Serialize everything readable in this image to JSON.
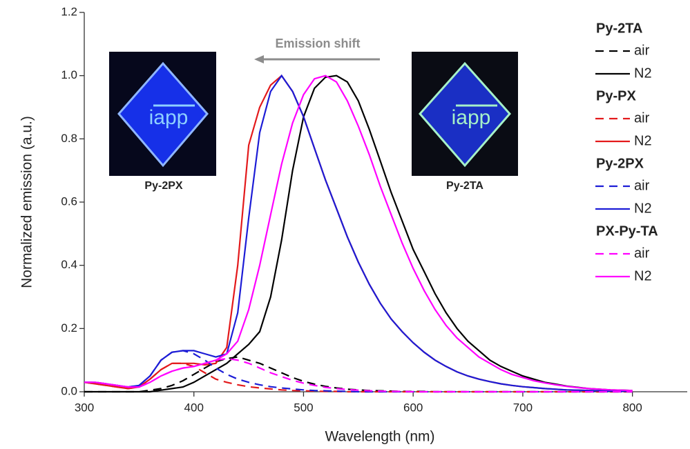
{
  "chart_data": {
    "type": "line",
    "xlabel": "Wavelength (nm)",
    "ylabel": "Normalized emission (a.u.)",
    "annotation": "Emission shift",
    "inset_labels": [
      "Py-2PX",
      "Py-2TA"
    ],
    "xlim": [
      300,
      850
    ],
    "ylim": [
      0,
      1.2
    ],
    "xticks": [
      300,
      400,
      500,
      600,
      700,
      800
    ],
    "yticks": [
      {
        "value": 0,
        "label": "0.0"
      },
      0.2,
      0.4,
      0.6,
      0.8,
      {
        "value": 1,
        "label": "1.0"
      },
      1.2
    ],
    "grid": false,
    "x": [
      300,
      310,
      320,
      330,
      340,
      350,
      360,
      370,
      380,
      390,
      400,
      410,
      420,
      430,
      440,
      450,
      460,
      470,
      480,
      490,
      500,
      510,
      520,
      530,
      540,
      550,
      560,
      570,
      580,
      590,
      600,
      610,
      620,
      630,
      640,
      650,
      660,
      670,
      680,
      690,
      700,
      710,
      720,
      730,
      740,
      750,
      760,
      770,
      780,
      790,
      800
    ],
    "series": [
      {
        "group": "Py-2TA",
        "name": "air",
        "color": "#000000",
        "dash": true,
        "values": [
          0,
          0,
          0,
          0,
          0,
          0,
          0.005,
          0.01,
          0.02,
          0.035,
          0.055,
          0.075,
          0.095,
          0.105,
          0.11,
          0.1,
          0.09,
          0.075,
          0.06,
          0.045,
          0.033,
          0.024,
          0.017,
          0.012,
          0.008,
          0.006,
          0.004,
          0.003,
          0.002,
          0.001,
          0.001,
          0.001,
          0,
          0,
          0,
          0,
          0,
          0,
          0,
          0,
          0,
          0,
          0,
          0,
          0,
          0,
          0,
          0,
          0,
          0,
          0
        ]
      },
      {
        "group": "Py-2TA",
        "name": "N2",
        "color": "#000000",
        "dash": false,
        "values": [
          0,
          0,
          0,
          0,
          0,
          0,
          0,
          0.005,
          0.01,
          0.015,
          0.03,
          0.05,
          0.07,
          0.09,
          0.12,
          0.15,
          0.19,
          0.3,
          0.48,
          0.7,
          0.87,
          0.96,
          0.995,
          1,
          0.98,
          0.92,
          0.83,
          0.73,
          0.63,
          0.54,
          0.45,
          0.38,
          0.31,
          0.25,
          0.2,
          0.16,
          0.13,
          0.1,
          0.08,
          0.065,
          0.05,
          0.04,
          0.03,
          0.024,
          0.018,
          0.014,
          0.01,
          0.008,
          0.006,
          0.005,
          0.004
        ]
      },
      {
        "group": "Py-PX",
        "name": "air",
        "color": "#e3191b",
        "dash": true,
        "values": [
          0.03,
          0.025,
          0.02,
          0.015,
          0.01,
          0.015,
          0.04,
          0.07,
          0.09,
          0.09,
          0.08,
          0.06,
          0.04,
          0.03,
          0.022,
          0.016,
          0.012,
          0.009,
          0.006,
          0.004,
          0.003,
          0.002,
          0.001,
          0.001,
          0,
          0,
          0,
          0,
          0,
          0,
          0,
          0,
          0,
          0,
          0,
          0,
          0,
          0,
          0,
          0,
          0,
          0,
          0,
          0,
          0,
          0,
          0,
          0,
          0,
          0,
          0
        ]
      },
      {
        "group": "Py-PX",
        "name": "N2",
        "color": "#e3191b",
        "dash": false,
        "values": [
          0.03,
          0.025,
          0.02,
          0.015,
          0.01,
          0.015,
          0.04,
          0.07,
          0.09,
          0.09,
          0.09,
          0.085,
          0.09,
          0.14,
          0.4,
          0.78,
          0.9,
          0.97,
          1,
          0.95,
          0.87,
          0.77,
          0.67,
          0.58,
          0.49,
          0.41,
          0.34,
          0.28,
          0.23,
          0.19,
          0.155,
          0.125,
          0.1,
          0.08,
          0.063,
          0.05,
          0.04,
          0.032,
          0.025,
          0.02,
          0.016,
          0.013,
          0.01,
          0.008,
          0.006,
          0.005,
          0.004,
          0.003,
          0.002,
          0.002,
          0.001
        ]
      },
      {
        "group": "Py-2PX",
        "name": "air",
        "color": "#1c1cd6",
        "dash": true,
        "values": [
          0.03,
          0.03,
          0.025,
          0.02,
          0.015,
          0.02,
          0.05,
          0.1,
          0.125,
          0.13,
          0.12,
          0.1,
          0.075,
          0.055,
          0.04,
          0.03,
          0.022,
          0.016,
          0.012,
          0.009,
          0.006,
          0.004,
          0.003,
          0.002,
          0.001,
          0,
          0,
          0,
          0,
          0,
          0,
          0,
          0,
          0,
          0,
          0,
          0,
          0,
          0,
          0,
          0,
          0,
          0,
          0,
          0,
          0,
          0,
          0,
          0,
          0,
          0
        ]
      },
      {
        "group": "Py-2PX",
        "name": "N2",
        "color": "#1c1cd6",
        "dash": false,
        "values": [
          0.03,
          0.03,
          0.025,
          0.02,
          0.015,
          0.02,
          0.05,
          0.1,
          0.125,
          0.13,
          0.13,
          0.12,
          0.11,
          0.12,
          0.25,
          0.55,
          0.82,
          0.95,
          1,
          0.95,
          0.87,
          0.77,
          0.67,
          0.58,
          0.49,
          0.41,
          0.34,
          0.28,
          0.23,
          0.19,
          0.155,
          0.125,
          0.1,
          0.08,
          0.063,
          0.05,
          0.04,
          0.032,
          0.025,
          0.02,
          0.016,
          0.013,
          0.01,
          0.008,
          0.006,
          0.005,
          0.004,
          0.003,
          0.002,
          0.002,
          0.001
        ]
      },
      {
        "group": "PX-Py-TA",
        "name": "air",
        "color": "#ff00ff",
        "dash": true,
        "values": [
          0.03,
          0.03,
          0.025,
          0.02,
          0.015,
          0.015,
          0.03,
          0.05,
          0.065,
          0.075,
          0.08,
          0.09,
          0.1,
          0.105,
          0.1,
          0.09,
          0.075,
          0.06,
          0.048,
          0.036,
          0.027,
          0.02,
          0.014,
          0.01,
          0.007,
          0.005,
          0.003,
          0.002,
          0.001,
          0.001,
          0,
          0,
          0,
          0,
          0,
          0,
          0,
          0,
          0,
          0,
          0,
          0,
          0,
          0,
          0,
          0,
          0,
          0,
          0,
          0,
          0
        ]
      },
      {
        "group": "PX-Py-TA",
        "name": "N2",
        "color": "#ff00ff",
        "dash": false,
        "values": [
          0.03,
          0.03,
          0.025,
          0.02,
          0.015,
          0.015,
          0.03,
          0.05,
          0.065,
          0.075,
          0.08,
          0.09,
          0.1,
          0.12,
          0.16,
          0.26,
          0.4,
          0.56,
          0.72,
          0.85,
          0.94,
          0.99,
          1,
          0.98,
          0.92,
          0.84,
          0.75,
          0.65,
          0.56,
          0.47,
          0.39,
          0.32,
          0.26,
          0.21,
          0.17,
          0.14,
          0.11,
          0.09,
          0.07,
          0.055,
          0.045,
          0.035,
          0.028,
          0.022,
          0.017,
          0.013,
          0.01,
          0.008,
          0.006,
          0.005,
          0.004
        ]
      }
    ]
  }
}
